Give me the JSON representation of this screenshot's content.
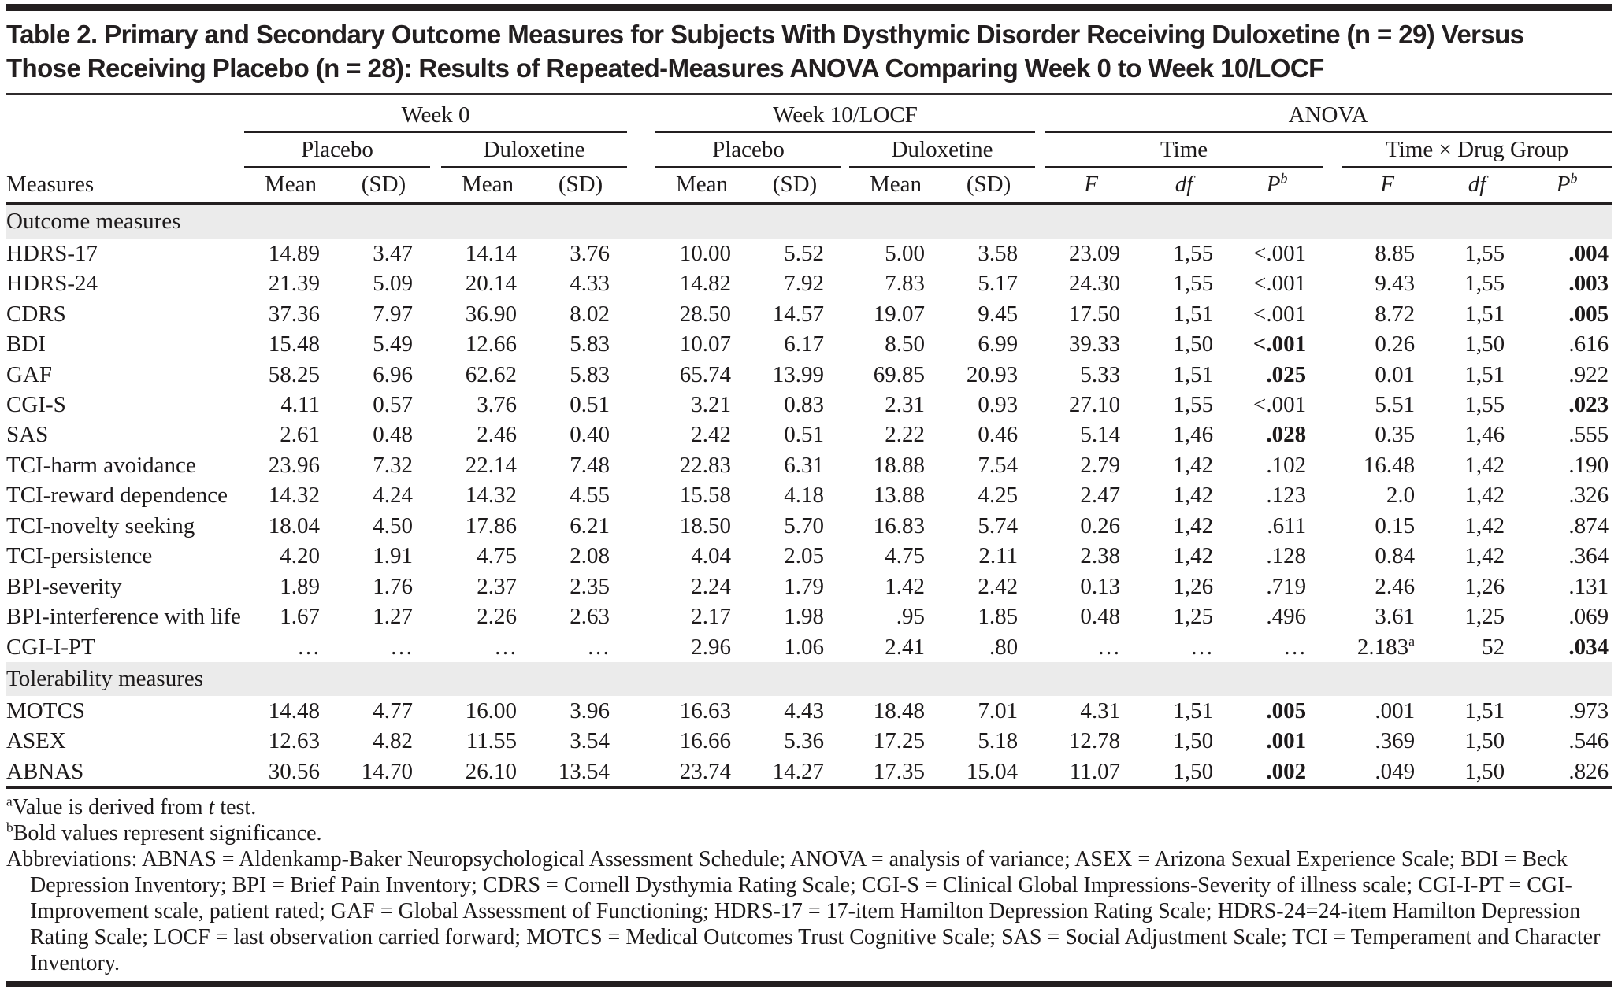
{
  "page": {
    "title_line1": "Table 2. Primary and Secondary Outcome Measures for Subjects With Dysthymic Disorder Receiving Duloxetine (n = 29) Versus",
    "title_line2": "Those Receiving Placebo (n = 28): Results of Repeated-Measures ANOVA Comparing Week 0 to Week 10/LOCF"
  },
  "colors": {
    "rule": "#231f20",
    "section_band": "#ebebeb",
    "text": "#1d1a1b"
  },
  "table": {
    "top_groups": [
      "Week 0",
      "Week 10/LOCF",
      "ANOVA"
    ],
    "sub_groups": [
      "Placebo",
      "Duloxetine",
      "Placebo",
      "Duloxetine",
      "Time",
      "Time × Drug Group"
    ],
    "measures_header": "Measures",
    "stat_headers": {
      "mean": "Mean",
      "sd": "(SD)",
      "f": "F",
      "df": "df",
      "p": "P",
      "p_sup": "b"
    },
    "sections": [
      {
        "label": "Outcome measures",
        "rows": [
          {
            "measure": "HDRS-17",
            "values": [
              "14.89",
              "3.47",
              "14.14",
              "3.76",
              "10.00",
              "5.52",
              "5.00",
              "3.58",
              "23.09",
              "1,55",
              "<.001",
              "8.85",
              "1,55",
              ".004"
            ],
            "bold": [
              13
            ]
          },
          {
            "measure": "HDRS-24",
            "values": [
              "21.39",
              "5.09",
              "20.14",
              "4.33",
              "14.82",
              "7.92",
              "7.83",
              "5.17",
              "24.30",
              "1,55",
              "<.001",
              "9.43",
              "1,55",
              ".003"
            ],
            "bold": [
              13
            ]
          },
          {
            "measure": "CDRS",
            "values": [
              "37.36",
              "7.97",
              "36.90",
              "8.02",
              "28.50",
              "14.57",
              "19.07",
              "9.45",
              "17.50",
              "1,51",
              "<.001",
              "8.72",
              "1,51",
              ".005"
            ],
            "bold": [
              13
            ]
          },
          {
            "measure": "BDI",
            "values": [
              "15.48",
              "5.49",
              "12.66",
              "5.83",
              "10.07",
              "6.17",
              "8.50",
              "6.99",
              "39.33",
              "1,50",
              "<.001",
              "0.26",
              "1,50",
              ".616"
            ],
            "bold": [
              10
            ]
          },
          {
            "measure": "GAF",
            "values": [
              "58.25",
              "6.96",
              "62.62",
              "5.83",
              "65.74",
              "13.99",
              "69.85",
              "20.93",
              "5.33",
              "1,51",
              ".025",
              "0.01",
              "1,51",
              ".922"
            ],
            "bold": [
              10
            ]
          },
          {
            "measure": "CGI-S",
            "values": [
              "4.11",
              "0.57",
              "3.76",
              "0.51",
              "3.21",
              "0.83",
              "2.31",
              "0.93",
              "27.10",
              "1,55",
              "<.001",
              "5.51",
              "1,55",
              ".023"
            ],
            "bold": [
              13
            ]
          },
          {
            "measure": "SAS",
            "values": [
              "2.61",
              "0.48",
              "2.46",
              "0.40",
              "2.42",
              "0.51",
              "2.22",
              "0.46",
              "5.14",
              "1,46",
              ".028",
              "0.35",
              "1,46",
              ".555"
            ],
            "bold": [
              10
            ]
          },
          {
            "measure": "TCI-harm avoidance",
            "values": [
              "23.96",
              "7.32",
              "22.14",
              "7.48",
              "22.83",
              "6.31",
              "18.88",
              "7.54",
              "2.79",
              "1,42",
              ".102",
              "16.48",
              "1,42",
              ".190"
            ],
            "bold": []
          },
          {
            "measure": "TCI-reward dependence",
            "values": [
              "14.32",
              "4.24",
              "14.32",
              "4.55",
              "15.58",
              "4.18",
              "13.88",
              "4.25",
              "2.47",
              "1,42",
              ".123",
              "2.0",
              "1,42",
              ".326"
            ],
            "bold": []
          },
          {
            "measure": "TCI-novelty seeking",
            "values": [
              "18.04",
              "4.50",
              "17.86",
              "6.21",
              "18.50",
              "5.70",
              "16.83",
              "5.74",
              "0.26",
              "1,42",
              ".611",
              "0.15",
              "1,42",
              ".874"
            ],
            "bold": []
          },
          {
            "measure": "TCI-persistence",
            "values": [
              "4.20",
              "1.91",
              "4.75",
              "2.08",
              "4.04",
              "2.05",
              "4.75",
              "2.11",
              "2.38",
              "1,42",
              ".128",
              "0.84",
              "1,42",
              ".364"
            ],
            "bold": []
          },
          {
            "measure": "BPI-severity",
            "values": [
              "1.89",
              "1.76",
              "2.37",
              "2.35",
              "2.24",
              "1.79",
              "1.42",
              "2.42",
              "0.13",
              "1,26",
              ".719",
              "2.46",
              "1,26",
              ".131"
            ],
            "bold": []
          },
          {
            "measure": "BPI-interference with life",
            "values": [
              "1.67",
              "1.27",
              "2.26",
              "2.63",
              "2.17",
              "1.98",
              ".95",
              "1.85",
              "0.48",
              "1,25",
              ".496",
              "3.61",
              "1,25",
              ".069"
            ],
            "bold": []
          },
          {
            "measure": "CGI-I-PT",
            "values": [
              "…",
              "…",
              "…",
              "…",
              "2.96",
              "1.06",
              "2.41",
              ".80",
              "…",
              "…",
              "…",
              "2.183^a",
              "52",
              ".034"
            ],
            "bold": [
              13
            ]
          }
        ]
      },
      {
        "label": "Tolerability measures",
        "rows": [
          {
            "measure": "MOTCS",
            "values": [
              "14.48",
              "4.77",
              "16.00",
              "3.96",
              "16.63",
              "4.43",
              "18.48",
              "7.01",
              "4.31",
              "1,51",
              ".005",
              ".001",
              "1,51",
              ".973"
            ],
            "bold": [
              10
            ]
          },
          {
            "measure": "ASEX",
            "values": [
              "12.63",
              "4.82",
              "11.55",
              "3.54",
              "16.66",
              "5.36",
              "17.25",
              "5.18",
              "12.78",
              "1,50",
              ".001",
              ".369",
              "1,50",
              ".546"
            ],
            "bold": [
              10
            ]
          },
          {
            "measure": "ABNAS",
            "values": [
              "30.56",
              "14.70",
              "26.10",
              "13.54",
              "23.74",
              "14.27",
              "17.35",
              "15.04",
              "11.07",
              "1,50",
              ".002",
              ".049",
              "1,50",
              ".826"
            ],
            "bold": [
              10
            ]
          }
        ]
      }
    ]
  },
  "footnotes": {
    "a_sup": "a",
    "a_pre": "Value is derived from ",
    "a_italic": "t",
    "a_post": " test.",
    "b_sup": "b",
    "b_text": "Bold values represent significance.",
    "abbreviations": "Abbreviations: ABNAS = Aldenkamp-Baker Neuropsychological Assessment Schedule; ANOVA = analysis of variance; ASEX = Arizona Sexual Experience Scale; BDI = Beck Depression Inventory; BPI = Brief Pain Inventory; CDRS = Cornell Dysthymia Rating Scale; CGI-S = Clinical Global Impressions-Severity of illness scale; CGI-I-PT = CGI-Improvement scale, patient rated; GAF = Global Assessment of Functioning; HDRS-17 = 17-item Hamilton Depression Rating Scale; HDRS-24=24-item Hamilton Depression Rating Scale; LOCF = last observation carried forward; MOTCS = Medical Outcomes Trust Cognitive Scale; SAS = Social Adjustment Scale; TCI = Temperament and Character Inventory."
  }
}
